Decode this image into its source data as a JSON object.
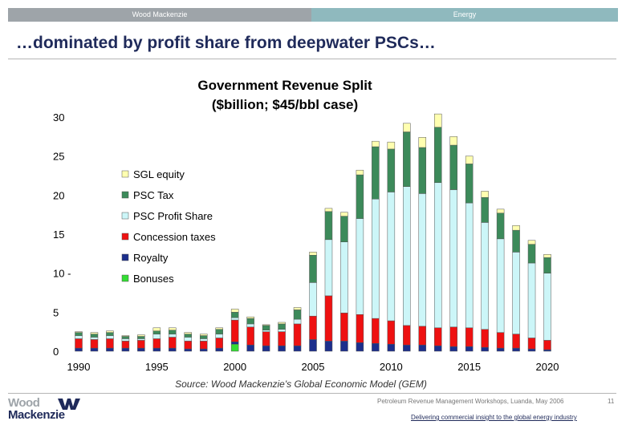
{
  "header": {
    "company": "Wood Mackenzie",
    "section": "Energy"
  },
  "slide_title": "…dominated by profit share from deepwater PSCs…",
  "footer": {
    "event": "Petroleum Revenue Management Workshops, Luanda, May 2006",
    "page": "11",
    "tagline": "Delivering commercial insight to the global energy industry",
    "logo_line1": "Wood",
    "logo_line2": "Mackenzie"
  },
  "colors": {
    "SGL equity": "#ffffb0",
    "PSC Tax": "#3c8a5a",
    "PSC Profit Share": "#ccf6f8",
    "Concession taxes": "#ee1111",
    "Royalty": "#1c2e8c",
    "Bonuses": "#33dd33"
  },
  "chart_data": {
    "type": "bar",
    "stacked": true,
    "title": "Government Revenue Split",
    "subtitle": "($billion; $45/bbl case)",
    "source": "Source: Wood Mackenzie's Global Economic Model (GEM)",
    "ylim": [
      0,
      30
    ],
    "yticks": [
      0,
      5,
      10,
      15,
      20,
      25,
      30
    ],
    "ytick_labels": [
      "0",
      "5",
      "10 -",
      "15",
      "20",
      "25",
      "30"
    ],
    "xticks": [
      "1990",
      "1995",
      "2000",
      "2005",
      "2010",
      "2015",
      "2020"
    ],
    "categories": [
      1990,
      1991,
      1992,
      1993,
      1994,
      1995,
      1996,
      1997,
      1998,
      1999,
      2000,
      2001,
      2002,
      2003,
      2004,
      2005,
      2006,
      2007,
      2008,
      2009,
      2010,
      2011,
      2012,
      2013,
      2014,
      2015,
      2016,
      2017,
      2018,
      2019,
      2020
    ],
    "legend": [
      "SGL equity",
      "PSC Tax",
      "PSC Profit Share",
      "Concession taxes",
      "Royalty",
      "Bonuses"
    ],
    "series": [
      {
        "name": "Bonuses",
        "values": [
          0,
          0,
          0,
          0,
          0,
          0,
          0,
          0,
          0,
          0,
          0.9,
          0,
          0,
          0,
          0,
          0,
          0,
          0,
          0,
          0,
          0,
          0,
          0,
          0,
          0,
          0,
          0,
          0,
          0,
          0,
          0
        ]
      },
      {
        "name": "Royalty",
        "values": [
          0.4,
          0.4,
          0.4,
          0.4,
          0.4,
          0.4,
          0.4,
          0.3,
          0.3,
          0.4,
          0.3,
          0.8,
          0.7,
          0.7,
          0.7,
          1.5,
          1.3,
          1.3,
          1.1,
          1.0,
          0.9,
          0.8,
          0.8,
          0.7,
          0.6,
          0.6,
          0.5,
          0.4,
          0.4,
          0.3,
          0.2
        ]
      },
      {
        "name": "Concession taxes",
        "values": [
          1.2,
          1.1,
          1.2,
          0.9,
          1.0,
          1.2,
          1.4,
          1.0,
          1.0,
          1.3,
          2.8,
          2.3,
          1.8,
          1.8,
          2.8,
          3.0,
          5.8,
          3.6,
          3.6,
          3.2,
          3.0,
          2.5,
          2.4,
          2.3,
          2.5,
          2.4,
          2.3,
          2.0,
          1.8,
          1.4,
          1.2
        ]
      },
      {
        "name": "PSC Profit Share",
        "values": [
          0.4,
          0.3,
          0.4,
          0.3,
          0.2,
          0.6,
          0.4,
          0.5,
          0.3,
          0.5,
          0.3,
          0.4,
          0.2,
          0.3,
          0.6,
          4.3,
          7.2,
          9.1,
          12.3,
          15.3,
          16.5,
          17.8,
          17.0,
          18.6,
          17.6,
          16.0,
          13.7,
          12.0,
          10.5,
          9.6,
          8.6
        ]
      },
      {
        "name": "PSC Tax",
        "values": [
          0.4,
          0.4,
          0.4,
          0.3,
          0.3,
          0.4,
          0.5,
          0.4,
          0.4,
          0.6,
          0.7,
          0.7,
          0.6,
          0.7,
          1.2,
          3.5,
          3.6,
          3.3,
          5.6,
          6.7,
          5.5,
          7.0,
          5.9,
          7.1,
          5.7,
          5.0,
          3.2,
          3.3,
          2.8,
          2.4,
          2.0
        ]
      },
      {
        "name": "SGL equity",
        "values": [
          0.1,
          0.2,
          0.2,
          0.1,
          0.2,
          0.4,
          0.3,
          0.2,
          0.2,
          0.2,
          0.4,
          0.2,
          0.1,
          0.2,
          0.3,
          0.4,
          0.4,
          0.5,
          0.6,
          0.7,
          0.9,
          1.1,
          1.3,
          1.7,
          1.1,
          1.0,
          0.8,
          0.5,
          0.6,
          0.5,
          0.4
        ]
      }
    ]
  }
}
